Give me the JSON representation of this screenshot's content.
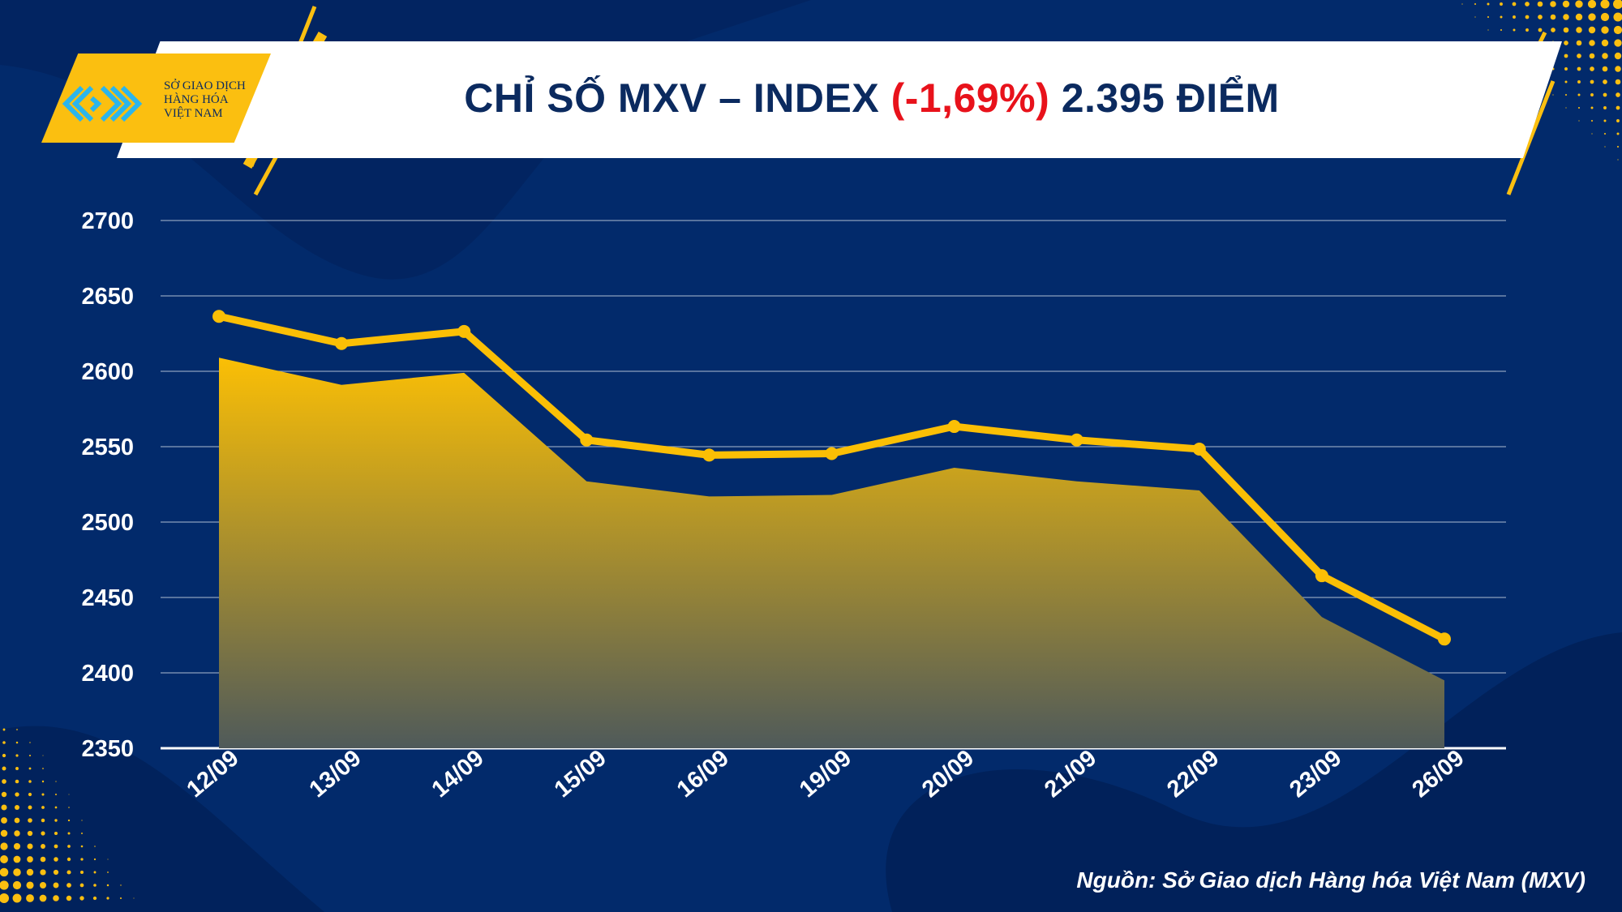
{
  "header": {
    "title_prefix": "CHỈ SỐ MXV – INDEX ",
    "title_change": "(-1,69%)",
    "title_suffix": " 2.395 ĐIỂM",
    "logo_lines": [
      "SỞ GIAO DỊCH",
      "HÀNG HÓA",
      "VIỆT NAM"
    ]
  },
  "source": "Nguồn: Sở Giao dịch Hàng hóa Việt Nam (MXV)",
  "colors": {
    "background": "#022a6b",
    "accent": "#fbbf10",
    "negative": "#e8121b",
    "title": "#0b2a5f"
  },
  "chart_data": {
    "type": "area",
    "title": "CHỈ SỐ MXV – INDEX (-1,69%) 2.395 ĐIỂM",
    "categories": [
      "12/09",
      "13/09",
      "14/09",
      "15/09",
      "16/09",
      "19/09",
      "20/09",
      "21/09",
      "22/09",
      "23/09",
      "26/09"
    ],
    "values": [
      2609,
      2591,
      2599,
      2527,
      2517,
      2518,
      2536,
      2527,
      2521,
      2437,
      2395
    ],
    "ylim": [
      2350,
      2700
    ],
    "yticks": [
      2350,
      2400,
      2450,
      2500,
      2550,
      2600,
      2650,
      2700
    ],
    "grid": true,
    "legend": "none",
    "xlabel": "",
    "ylabel": ""
  }
}
